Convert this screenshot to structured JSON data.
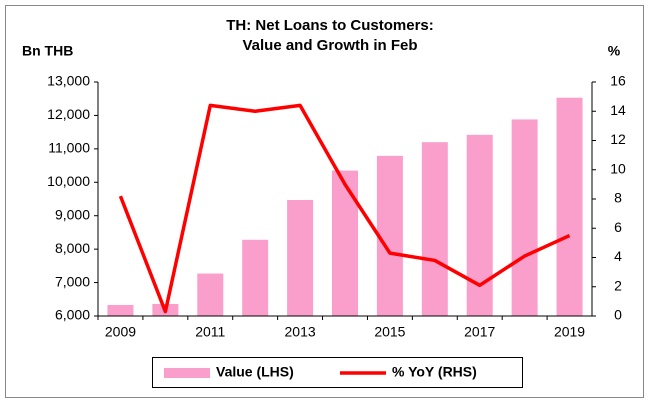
{
  "chart_data": {
    "type": "bar+line",
    "title": [
      "TH: Net Loans to Customers:",
      "Value and Growth in Feb"
    ],
    "ylabel": "Bn THB",
    "y2label": "%",
    "categories": [
      "2009",
      null,
      "2011",
      null,
      "2013",
      null,
      "2015",
      null,
      "2017",
      null,
      "2019"
    ],
    "series": [
      {
        "name": "Value (LHS)",
        "type": "bar",
        "color": "#fa9fcc",
        "axis": "y",
        "values": [
          6330,
          6360,
          7270,
          8280,
          9470,
          10350,
          10790,
          11200,
          11420,
          11880,
          12530
        ]
      },
      {
        "name": "% YoY (RHS)",
        "type": "line",
        "color": "#ff0000",
        "axis": "y2",
        "values": [
          8.2,
          0.3,
          14.4,
          14.0,
          14.4,
          9.0,
          4.3,
          3.8,
          2.1,
          4.1,
          5.5
        ]
      }
    ],
    "ylim": [
      6000,
      13000
    ],
    "yticks": [
      {
        "value": 6000,
        "label": "6,000"
      },
      {
        "value": 7000,
        "label": "7,000"
      },
      {
        "value": 8000,
        "label": "8,000"
      },
      {
        "value": 9000,
        "label": "9,000"
      },
      {
        "value": 10000,
        "label": "10,000"
      },
      {
        "value": 11000,
        "label": "11,000"
      },
      {
        "value": 12000,
        "label": "12,000"
      },
      {
        "value": 13000,
        "label": "13,000"
      }
    ],
    "y2lim": [
      0,
      16
    ],
    "y2ticks": [
      0,
      2,
      4,
      6,
      8,
      10,
      12,
      14,
      16
    ],
    "grid": false,
    "legend": "bottom"
  }
}
